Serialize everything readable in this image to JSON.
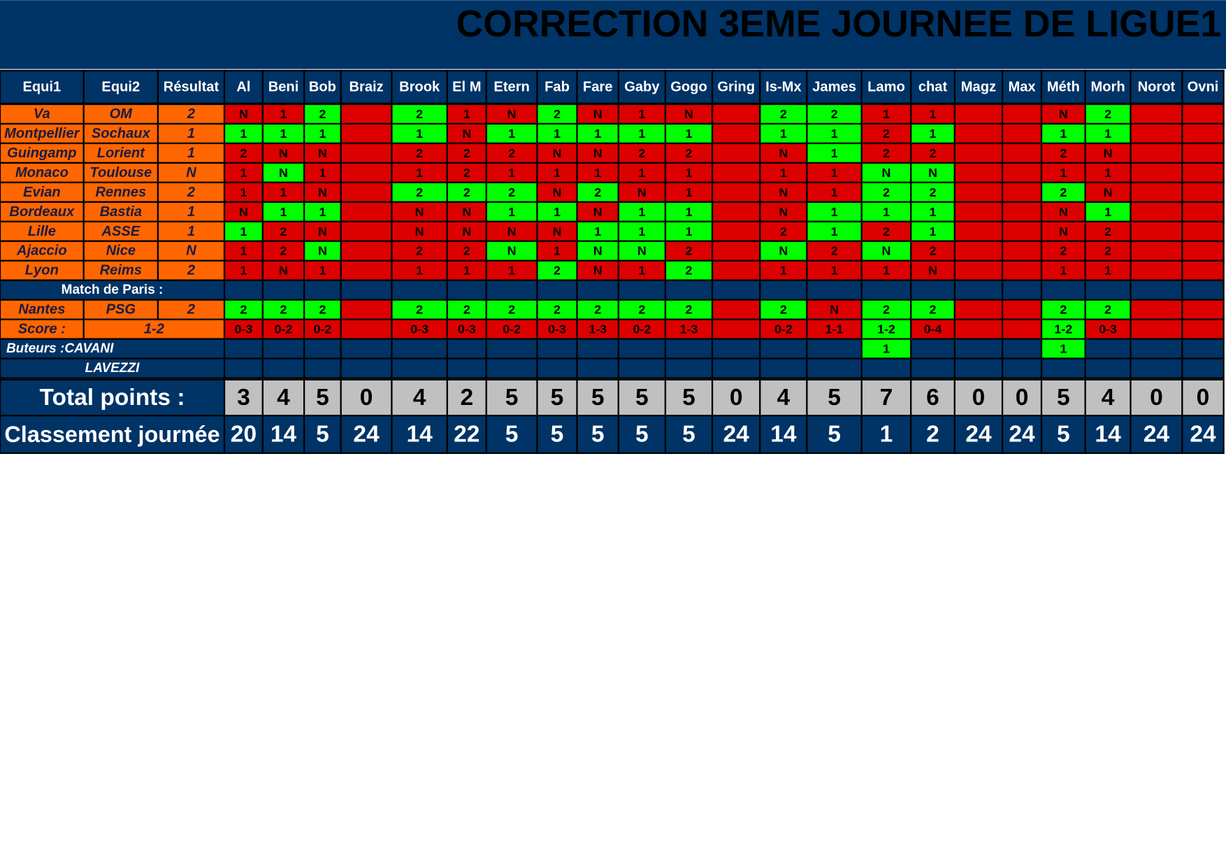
{
  "title": "CORRECTION 3EME JOURNEE DE LIGUE1",
  "headers": [
    "Equi1",
    "Equi2",
    "Résultat"
  ],
  "players": [
    "Al",
    "Beni",
    "Bob",
    "Braiz",
    "Brook",
    "El M",
    "Etern",
    "Fab",
    "Fare",
    "Gaby",
    "Gogo",
    "Gring",
    "Is-Mx",
    "James",
    "Lamo",
    "chat",
    "Magz",
    "Max",
    "Méth",
    "Morh",
    "Norot",
    "Ovni"
  ],
  "matches": [
    {
      "team1": "Va",
      "team2": "OM",
      "result": "2",
      "predictions": [
        "N",
        "1",
        "2",
        null,
        "2",
        "1",
        "N",
        "2",
        "N",
        "1",
        "N",
        null,
        "2",
        "2",
        "1",
        "1",
        null,
        null,
        "N",
        "2",
        null,
        null
      ]
    },
    {
      "team1": "Montpellier",
      "team2": "Sochaux",
      "result": "1",
      "predictions": [
        "1",
        "1",
        "1",
        null,
        "1",
        "N",
        "1",
        "1",
        "1",
        "1",
        "1",
        null,
        "1",
        "1",
        "2",
        "1",
        null,
        null,
        "1",
        "1",
        null,
        null
      ]
    },
    {
      "team1": "Guingamp",
      "team2": "Lorient",
      "result": "1",
      "predictions": [
        "2",
        "N",
        "N",
        null,
        "2",
        "2",
        "2",
        "N",
        "N",
        "2",
        "2",
        null,
        "N",
        "1",
        "2",
        "2",
        null,
        null,
        "2",
        "N",
        null,
        null
      ]
    },
    {
      "team1": "Monaco",
      "team2": "Toulouse",
      "result": "N",
      "predictions": [
        "1",
        "N",
        "1",
        null,
        "1",
        "2",
        "1",
        "1",
        "1",
        "1",
        "1",
        null,
        "1",
        "1",
        "N",
        "N",
        null,
        null,
        "1",
        "1",
        null,
        null
      ]
    },
    {
      "team1": "Evian",
      "team2": "Rennes",
      "result": "2",
      "predictions": [
        "1",
        "1",
        "N",
        null,
        "2",
        "2",
        "2",
        "N",
        "2",
        "N",
        "1",
        null,
        "N",
        "1",
        "2",
        "2",
        null,
        null,
        "2",
        "N",
        null,
        null
      ]
    },
    {
      "team1": "Bordeaux",
      "team2": "Bastia",
      "result": "1",
      "predictions": [
        "N",
        "1",
        "1",
        null,
        "N",
        "N",
        "1",
        "1",
        "N",
        "1",
        "1",
        null,
        "N",
        "1",
        "1",
        "1",
        null,
        null,
        "N",
        "1",
        null,
        null
      ]
    },
    {
      "team1": "Lille",
      "team2": "ASSE",
      "result": "1",
      "predictions": [
        "1",
        "2",
        "N",
        null,
        "N",
        "N",
        "N",
        "N",
        "1",
        "1",
        "1",
        null,
        "2",
        "1",
        "2",
        "1",
        null,
        null,
        "N",
        "2",
        null,
        null
      ]
    },
    {
      "team1": "Ajaccio",
      "team2": "Nice",
      "result": "N",
      "predictions": [
        "1",
        "2",
        "N",
        null,
        "2",
        "2",
        "N",
        "1",
        "N",
        "N",
        "2",
        null,
        "N",
        "2",
        "N",
        "2",
        null,
        null,
        "2",
        "2",
        null,
        null
      ]
    },
    {
      "team1": "Lyon",
      "team2": "Reims",
      "result": "2",
      "predictions": [
        "1",
        "N",
        "1",
        null,
        "1",
        "1",
        "1",
        "2",
        "N",
        "1",
        "2",
        null,
        "1",
        "1",
        "1",
        "N",
        null,
        null,
        "1",
        "1",
        null,
        null
      ]
    }
  ],
  "paris": {
    "label": "Match de Paris :",
    "team1": "Nantes",
    "team2": "PSG",
    "result": "2",
    "predictions": [
      "2",
      "2",
      "2",
      null,
      "2",
      "2",
      "2",
      "2",
      "2",
      "2",
      "2",
      null,
      "2",
      "N",
      "2",
      "2",
      null,
      null,
      "2",
      "2",
      null,
      null
    ],
    "score_label": "Score :",
    "score": "1-2",
    "score_predictions": [
      "0-3",
      "0-2",
      "0-2",
      null,
      "0-3",
      "0-3",
      "0-2",
      "0-3",
      "1-3",
      "0-2",
      "1-3",
      null,
      "0-2",
      "1-1",
      "1-2",
      "0-4",
      null,
      null,
      "1-2",
      "0-3",
      null,
      null
    ]
  },
  "scorers": {
    "label": "Buteurs :CAVANI",
    "label2": "LAVEZZI",
    "points": [
      null,
      null,
      null,
      null,
      null,
      null,
      null,
      null,
      null,
      null,
      null,
      null,
      null,
      null,
      1,
      null,
      null,
      null,
      1,
      null,
      null,
      null
    ]
  },
  "total_label": "Total points :",
  "totals": [
    3,
    4,
    5,
    0,
    4,
    2,
    5,
    5,
    5,
    5,
    5,
    0,
    4,
    5,
    7,
    6,
    0,
    0,
    5,
    4,
    0,
    0
  ],
  "rank_label": "Classement journée",
  "ranks": [
    20,
    14,
    5,
    24,
    14,
    22,
    5,
    5,
    5,
    5,
    5,
    24,
    14,
    5,
    1,
    2,
    24,
    24,
    5,
    14,
    24,
    24
  ]
}
